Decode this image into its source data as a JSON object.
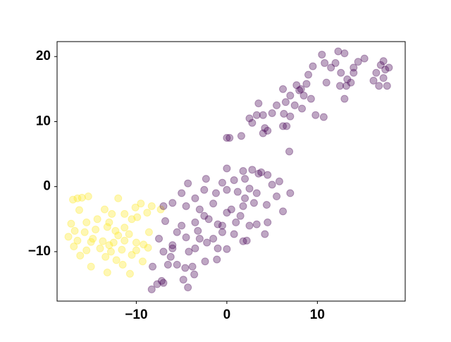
{
  "chart_data": {
    "type": "scatter",
    "alpha": 0.35,
    "xlim": [
      -18.75,
      19.7
    ],
    "ylim": [
      -17.6,
      22.3
    ],
    "xticks": [
      {
        "value": -10,
        "label": "−10"
      },
      0,
      10
    ],
    "yticks": [
      {
        "value": -10,
        "label": "−10"
      },
      0,
      10,
      20
    ],
    "series": [
      {
        "color": "#fde725",
        "x": [
          -17,
          -16.5,
          -16,
          -15.3,
          -12,
          -16.3,
          -13.5,
          -12.7,
          -10.1,
          -9.5,
          -8.3,
          -8.8,
          -7.3,
          -17.2,
          -15.5,
          -14.3,
          -13,
          -11.3,
          -10.5,
          -9.9,
          -16.8,
          -15.7,
          -14.5,
          -13.2,
          -12.3,
          -11.3,
          -10.8,
          -17.5,
          -16.5,
          -15,
          -13.7,
          -12.5,
          -11.3,
          -10,
          -9.2,
          -8.6,
          -16.9,
          -15.5,
          -14,
          -12.8,
          -11.6,
          -10,
          -8.7,
          -16.2,
          -15,
          -13.4,
          -12.2,
          -11.5,
          -10.7,
          -13.2,
          -9.3,
          -14.8,
          -12,
          -13,
          -10.5
        ],
        "y": [
          -2,
          -1.8,
          -1.7,
          -1.5,
          -1.8,
          -3.6,
          -3.5,
          -4.2,
          -3.2,
          -2.6,
          -3,
          -4,
          -3.5,
          -5.7,
          -5.5,
          -5,
          -5.5,
          -4.2,
          -5,
          -4.7,
          -6.8,
          -7,
          -6.6,
          -6.2,
          -6.8,
          -6.3,
          -7.3,
          -7.7,
          -8.3,
          -8.5,
          -8.4,
          -8.6,
          -8.3,
          -8.6,
          -8.9,
          -7,
          -9.2,
          -9.8,
          -9.5,
          -10,
          -9.7,
          -9.8,
          -9.4,
          -10.6,
          -12.3,
          -10.8,
          -11.3,
          -12,
          -13.4,
          -13.2,
          -11.5,
          -8,
          -7.5,
          -9,
          -10.5
        ]
      },
      {
        "color": "#440154",
        "x": [
          -8.3,
          -7.7,
          -7.2,
          -7,
          -4.8,
          -4.3,
          -3.6,
          -5.5,
          -4.6,
          -3.8,
          -2.4,
          -1.1,
          -8.2,
          -6.5,
          -6.2,
          -7,
          -6,
          -4.2,
          -3.5,
          -2.2,
          -1,
          0,
          -7.5,
          -5.5,
          -4.5,
          -3,
          -1.5,
          -0.5,
          0.8,
          1.8,
          2.2,
          4.2,
          -6.8,
          -5,
          -3.5,
          -2,
          -0.5,
          1,
          2.5,
          3.3,
          4.5,
          6.2,
          -7,
          -6,
          -4.5,
          -3,
          -1.5,
          0.5,
          1.8,
          3,
          4.4,
          5.5,
          -5,
          -3.5,
          -2.5,
          -1.2,
          0,
          1.2,
          2.5,
          3.3,
          5,
          7,
          -4.3,
          -2.3,
          -0.5,
          0.8,
          2,
          3.5,
          4.5,
          5.8,
          0,
          1.8,
          2.8,
          3.8,
          -2.5,
          0,
          1.5,
          -1,
          2,
          -6,
          -3.2,
          0,
          0.3,
          1.6,
          6.9,
          2.5,
          3.3,
          4,
          5,
          6.3,
          7,
          4.2,
          4,
          4.5,
          6.2,
          6.6,
          2.8,
          3.5,
          5.5,
          6.5,
          6.2,
          7,
          8,
          7.5,
          8.3,
          8.5,
          9.3,
          9.8,
          10.7,
          7.7,
          8.2,
          8.8,
          9,
          9.5,
          10.5,
          10.8,
          11.5,
          12.3,
          12,
          13,
          12.6,
          13.3,
          14,
          14.5,
          15.2,
          11,
          12.5,
          13.2,
          13,
          14,
          16.2,
          16.5,
          17,
          17.3,
          17.5,
          17.9,
          17.3,
          17.7,
          16.8,
          13.7
        ],
        "y": [
          -15.8,
          -15,
          -14.5,
          -14.8,
          -14.3,
          -15.5,
          -13.5,
          -12,
          -12.5,
          -12.3,
          -11.5,
          -11.2,
          -12.3,
          -12,
          -10.8,
          -10,
          -9.5,
          -10,
          -9.5,
          -8.6,
          -9.5,
          -9.6,
          -8,
          -7,
          -7.8,
          -8,
          -8,
          -7,
          -7.3,
          -8.4,
          -8.3,
          -7.3,
          -5.3,
          -6,
          -5.5,
          -5,
          -6,
          -5.5,
          -6,
          -5.8,
          -5.5,
          -3.8,
          -3,
          -2.5,
          -3,
          -3.5,
          -2.6,
          -3.5,
          -3,
          -2.5,
          -2.8,
          -1.5,
          -1,
          -1.8,
          -0.5,
          -1,
          -0.5,
          -0.8,
          -0.3,
          -1,
          0.3,
          -1,
          0.5,
          1.2,
          0.6,
          1,
          1.2,
          2,
          1.8,
          0.8,
          2.8,
          2.4,
          2.6,
          2.2,
          -4.5,
          -4,
          -4.5,
          -5.8,
          -1.8,
          -9,
          -6.8,
          7.5,
          7.5,
          7.8,
          5.4,
          10.5,
          11,
          11,
          11.3,
          11.2,
          10.8,
          9,
          8.2,
          8.6,
          9.3,
          9.3,
          9.8,
          12.8,
          12.5,
          13,
          15,
          14,
          14.8,
          12.5,
          12,
          14,
          13.5,
          11,
          10.7,
          15.6,
          15,
          15.8,
          17.2,
          18.5,
          20.3,
          19,
          18.3,
          20.8,
          19,
          20.5,
          17.5,
          16.5,
          18.3,
          19.2,
          19.7,
          16,
          15.5,
          15.5,
          13.5,
          17.5,
          16.3,
          17.5,
          18.7,
          19.3,
          18,
          18.3,
          16.7,
          15.5,
          15.5,
          16
        ]
      }
    ]
  }
}
